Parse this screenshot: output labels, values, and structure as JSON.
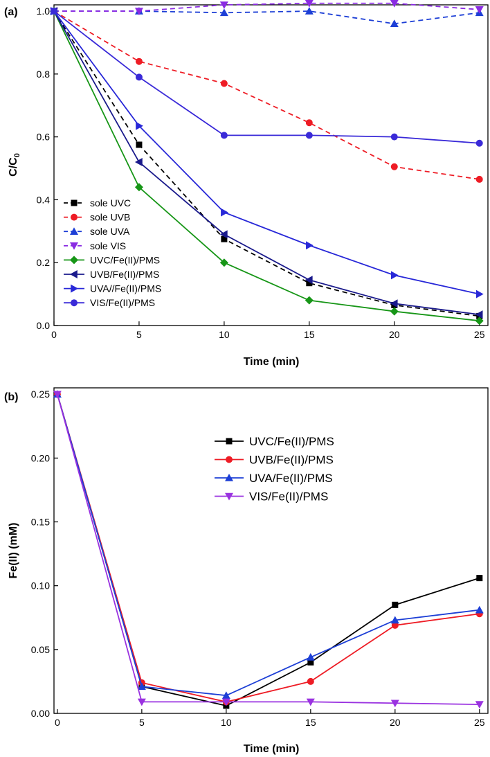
{
  "chart_data": [
    {
      "type": "line",
      "panel_label": "(a)",
      "xlabel": "Time (min)",
      "ylabel": "C/C",
      "ylabel_sub": "0",
      "xlim": [
        0,
        25.5
      ],
      "ylim": [
        0,
        1.02
      ],
      "xticks": [
        0,
        5,
        10,
        15,
        20,
        25
      ],
      "yticks": [
        0.0,
        0.2,
        0.4,
        0.6,
        0.8,
        1.0
      ],
      "x": [
        0,
        5,
        10,
        15,
        20,
        25
      ],
      "legend_position": "bottom-left",
      "series": [
        {
          "name": "sole UVC",
          "color": "#000000",
          "dashed": true,
          "marker": "square",
          "values": [
            1.0,
            0.575,
            0.275,
            0.135,
            0.065,
            0.03
          ]
        },
        {
          "name": "sole UVB",
          "color": "#ee1c25",
          "dashed": true,
          "marker": "circle",
          "values": [
            1.0,
            0.84,
            0.77,
            0.645,
            0.505,
            0.465
          ]
        },
        {
          "name": "sole UVA",
          "color": "#1d3fd6",
          "dashed": true,
          "marker": "triangle-up",
          "values": [
            1.0,
            1.0,
            0.995,
            1.0,
            0.96,
            0.995
          ]
        },
        {
          "name": "sole VIS",
          "color": "#8a2be2",
          "dashed": true,
          "marker": "triangle-down",
          "values": [
            1.0,
            1.0,
            1.02,
            1.025,
            1.025,
            1.005
          ]
        },
        {
          "name": "UVC/Fe(II)/PMS",
          "color": "#179617",
          "dashed": false,
          "marker": "diamond",
          "values": [
            1.0,
            0.44,
            0.2,
            0.08,
            0.045,
            0.015
          ]
        },
        {
          "name": "UVB/Fe(II)/PMS",
          "color": "#1a1a8c",
          "dashed": false,
          "marker": "triangle-left",
          "values": [
            1.0,
            0.52,
            0.29,
            0.145,
            0.07,
            0.035
          ]
        },
        {
          "name": "UVA//Fe(II)/PMS",
          "color": "#2828d8",
          "dashed": false,
          "marker": "triangle-right",
          "values": [
            1.0,
            0.635,
            0.36,
            0.255,
            0.16,
            0.1
          ]
        },
        {
          "name": "VIS/Fe(II)/PMS",
          "color": "#3a2ad8",
          "dashed": false,
          "marker": "circle",
          "values": [
            1.0,
            0.79,
            0.605,
            0.605,
            0.6,
            0.58
          ]
        }
      ]
    },
    {
      "type": "line",
      "panel_label": "(b)",
      "xlabel": "Time (min)",
      "ylabel": "Fe(II) (mM)",
      "xlim": [
        -0.2,
        25.5
      ],
      "ylim": [
        0,
        0.255
      ],
      "xticks": [
        0,
        5,
        10,
        15,
        20,
        25
      ],
      "yticks": [
        0.0,
        0.05,
        0.1,
        0.15,
        0.2,
        0.25
      ],
      "ytick_labels": [
        "0.00",
        "0.05",
        "0.10",
        "0.15",
        "0.20",
        "0.25"
      ],
      "x": [
        0,
        5,
        10,
        15,
        20,
        25
      ],
      "legend_position": "top-right",
      "series": [
        {
          "name": "UVC/Fe(II)/PMS",
          "color": "#000000",
          "dashed": false,
          "marker": "square",
          "values": [
            0.25,
            0.021,
            0.006,
            0.04,
            0.085,
            0.106
          ]
        },
        {
          "name": "UVB/Fe(II)/PMS",
          "color": "#ee1c25",
          "dashed": false,
          "marker": "circle",
          "values": [
            0.25,
            0.024,
            0.009,
            0.025,
            0.069,
            0.078
          ]
        },
        {
          "name": "UVA/Fe(II)/PMS",
          "color": "#1d3fd6",
          "dashed": false,
          "marker": "triangle-up",
          "values": [
            0.25,
            0.021,
            0.014,
            0.044,
            0.073,
            0.081
          ]
        },
        {
          "name": "VIS/Fe(II)/PMS",
          "color": "#9a32e0",
          "dashed": false,
          "marker": "triangle-down",
          "values": [
            0.25,
            0.009,
            0.009,
            0.009,
            0.008,
            0.007
          ]
        }
      ]
    }
  ]
}
